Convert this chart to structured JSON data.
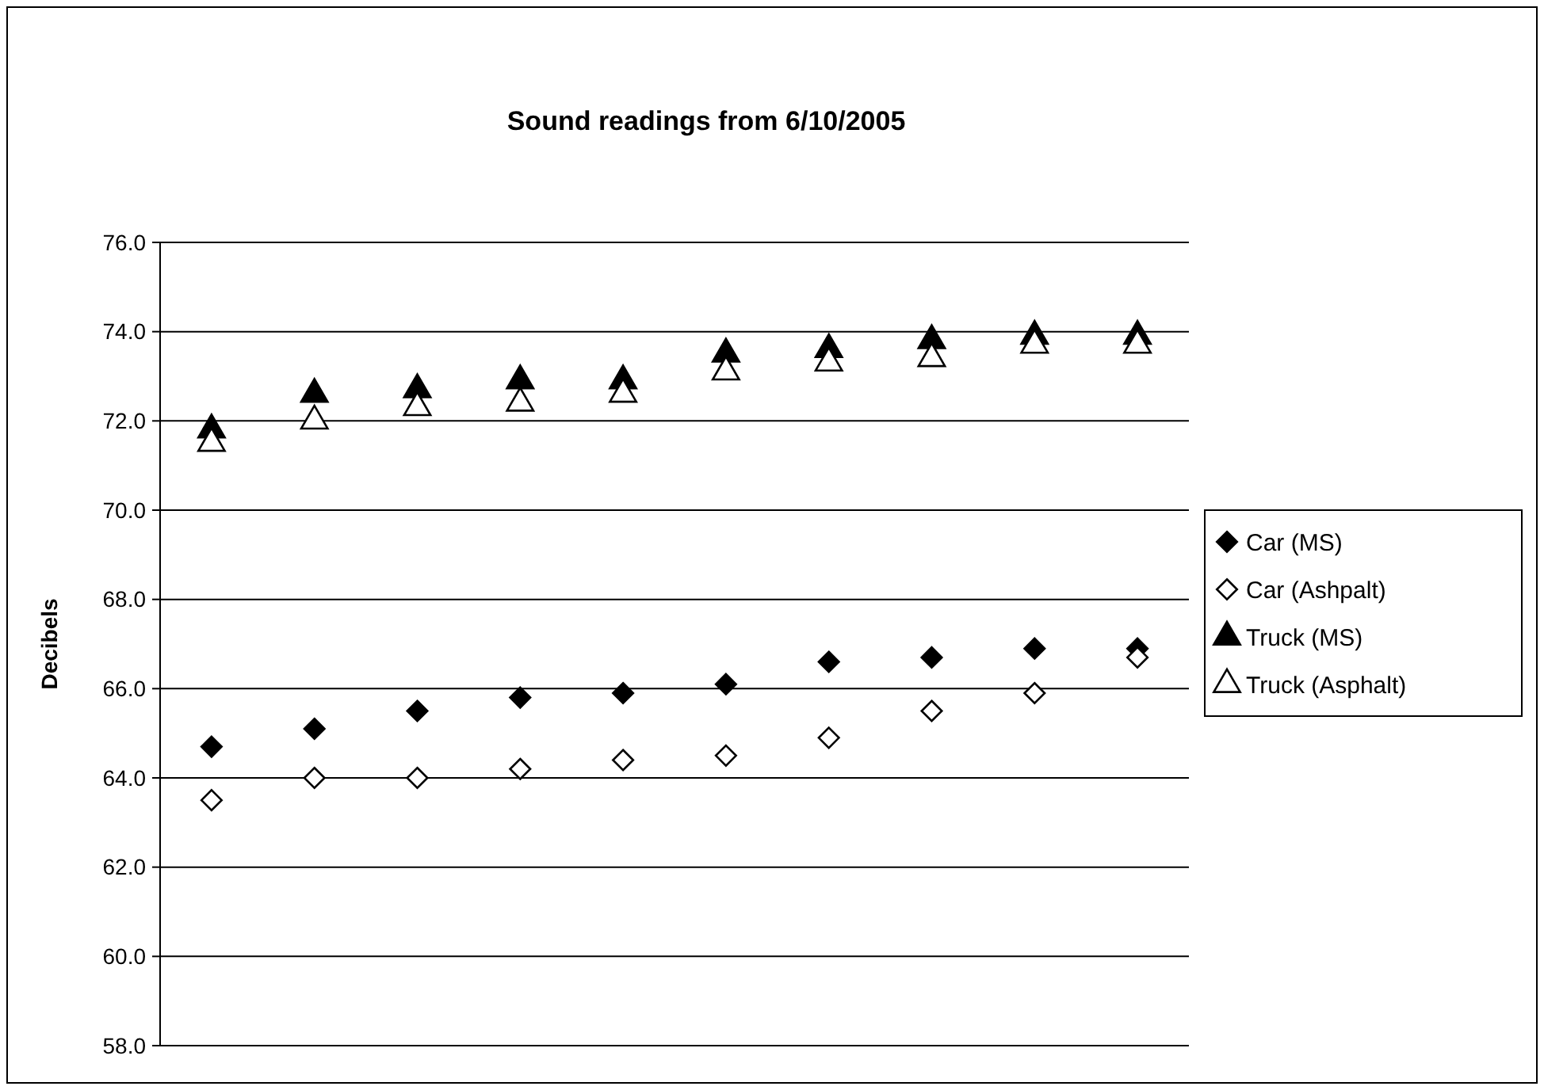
{
  "chart_data": {
    "type": "scatter",
    "title": "Sound readings from 6/10/2005",
    "ylabel": "Decibels",
    "categories": [
      null,
      null,
      null,
      null,
      null,
      null,
      null,
      null,
      null,
      null
    ],
    "series": [
      {
        "name": "Car (MS)",
        "color": "#000000",
        "marker": "diamond",
        "values": [
          64.7,
          65.1,
          65.5,
          65.8,
          65.9,
          66.1,
          66.6,
          66.7,
          66.9,
          66.9
        ]
      },
      {
        "name": "Car (Ashpalt)",
        "color": "#ffffff",
        "marker": "diamond",
        "values": [
          63.5,
          64.0,
          64.0,
          64.2,
          64.4,
          64.5,
          64.9,
          65.5,
          65.9,
          66.7
        ]
      },
      {
        "name": "Truck (MS)",
        "color": "#000000",
        "marker": "triangle",
        "values": [
          71.8,
          72.6,
          72.7,
          72.9,
          72.9,
          73.5,
          73.6,
          73.8,
          73.9,
          73.9
        ]
      },
      {
        "name": "Truck (Asphalt)",
        "color": "#ffffff",
        "marker": "triangle",
        "values": [
          71.5,
          72.0,
          72.3,
          72.4,
          72.6,
          73.1,
          73.3,
          73.4,
          73.7,
          73.7
        ]
      }
    ],
    "ylim": [
      58,
      76
    ],
    "yticks": [
      {
        "value": 58,
        "label": "58.0"
      },
      {
        "value": 60,
        "label": "60.0"
      },
      {
        "value": 62,
        "label": "62.0"
      },
      {
        "value": 64,
        "label": "64.0"
      },
      {
        "value": 66,
        "label": "66.0"
      },
      {
        "value": 68,
        "label": "68.0"
      },
      {
        "value": 70,
        "label": "70.0"
      },
      {
        "value": 72,
        "label": "72.0"
      },
      {
        "value": 74,
        "label": "74.0"
      },
      {
        "value": 76,
        "label": "76.0"
      }
    ],
    "grid": "y",
    "legend": "right"
  }
}
